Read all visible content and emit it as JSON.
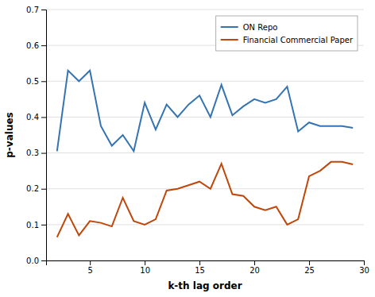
{
  "chart_data": {
    "type": "line",
    "xlabel": "k-th lag order",
    "ylabel": "p-values",
    "x": [
      2,
      3,
      4,
      5,
      6,
      7,
      8,
      9,
      10,
      11,
      12,
      13,
      14,
      15,
      16,
      17,
      18,
      19,
      20,
      21,
      22,
      23,
      24,
      25,
      26,
      27,
      28,
      29
    ],
    "series": [
      {
        "name": "ON Repo",
        "color": "#3574b3",
        "values": [
          0.305,
          0.53,
          0.5,
          0.53,
          0.375,
          0.32,
          0.35,
          0.305,
          0.44,
          0.365,
          0.435,
          0.4,
          0.435,
          0.46,
          0.4,
          0.49,
          0.405,
          0.43,
          0.45,
          0.44,
          0.45,
          0.485,
          0.36,
          0.385,
          0.375,
          0.375,
          0.375,
          0.37
        ]
      },
      {
        "name": "Financial Commercial Paper",
        "color": "#c0470a",
        "values": [
          0.065,
          0.13,
          0.07,
          0.11,
          0.105,
          0.095,
          0.175,
          0.11,
          0.1,
          0.115,
          0.195,
          0.2,
          0.21,
          0.22,
          0.2,
          0.27,
          0.185,
          0.18,
          0.15,
          0.14,
          0.15,
          0.1,
          0.115,
          0.235,
          0.25,
          0.275,
          0.275,
          0.268
        ]
      }
    ],
    "xlim": [
      1,
      30
    ],
    "xticks": [
      5,
      10,
      15,
      20,
      25,
      30
    ],
    "ylim": [
      0,
      0.7
    ],
    "yticks": [
      {
        "value": 0,
        "label": "0.0"
      },
      0.1,
      0.2,
      0.3,
      0.4,
      0.5,
      0.6,
      0.7
    ],
    "grid": true,
    "legend": "upper right"
  }
}
